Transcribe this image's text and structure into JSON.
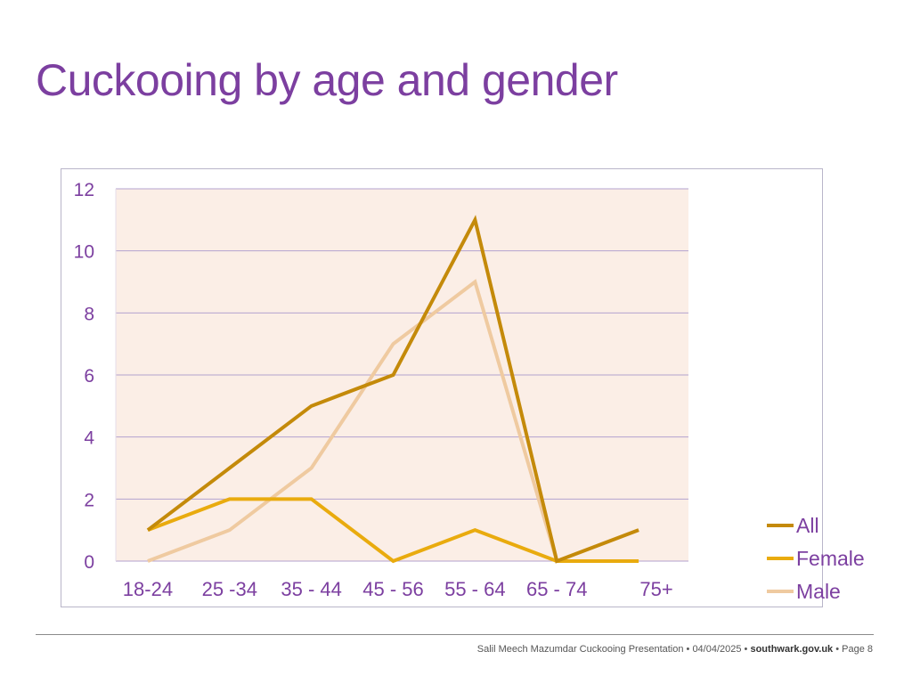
{
  "slide": {
    "title": "Cuckooing by age and gender"
  },
  "colors": {
    "title": "#7c3fa0",
    "plot_background": "#fbeee6",
    "gridline": "#b3a2cf",
    "tick_label": "#7c3fa0",
    "all": "#c48a0a",
    "female": "#e9ab0e",
    "male": "#efcaa0"
  },
  "chart_data": {
    "type": "line",
    "title": "",
    "xlabel": "",
    "ylabel": "",
    "categories": [
      "18-24",
      "25 -34",
      "35 - 44",
      "45 - 56",
      "55 - 64",
      "65 - 74",
      "75+"
    ],
    "ylim": [
      0,
      12
    ],
    "yticks": [
      0,
      2,
      4,
      6,
      8,
      10,
      12
    ],
    "grid": true,
    "legend": "right",
    "series": [
      {
        "name": "All",
        "color": "#c48a0a",
        "values": [
          1,
          3,
          5,
          6,
          11,
          0,
          1
        ]
      },
      {
        "name": "Female",
        "color": "#e9ab0e",
        "values": [
          1,
          2,
          2,
          0,
          1,
          0,
          0
        ]
      },
      {
        "name": "Male",
        "color": "#efcaa0",
        "values": [
          0,
          1,
          3,
          7,
          9,
          0,
          1
        ]
      }
    ]
  },
  "footer": {
    "text": "Salil Meech Mazumdar Cuckooing Presentation • 04/04/2025 • ",
    "domain": "southwark.gov.uk",
    "page": " • Page 8"
  }
}
